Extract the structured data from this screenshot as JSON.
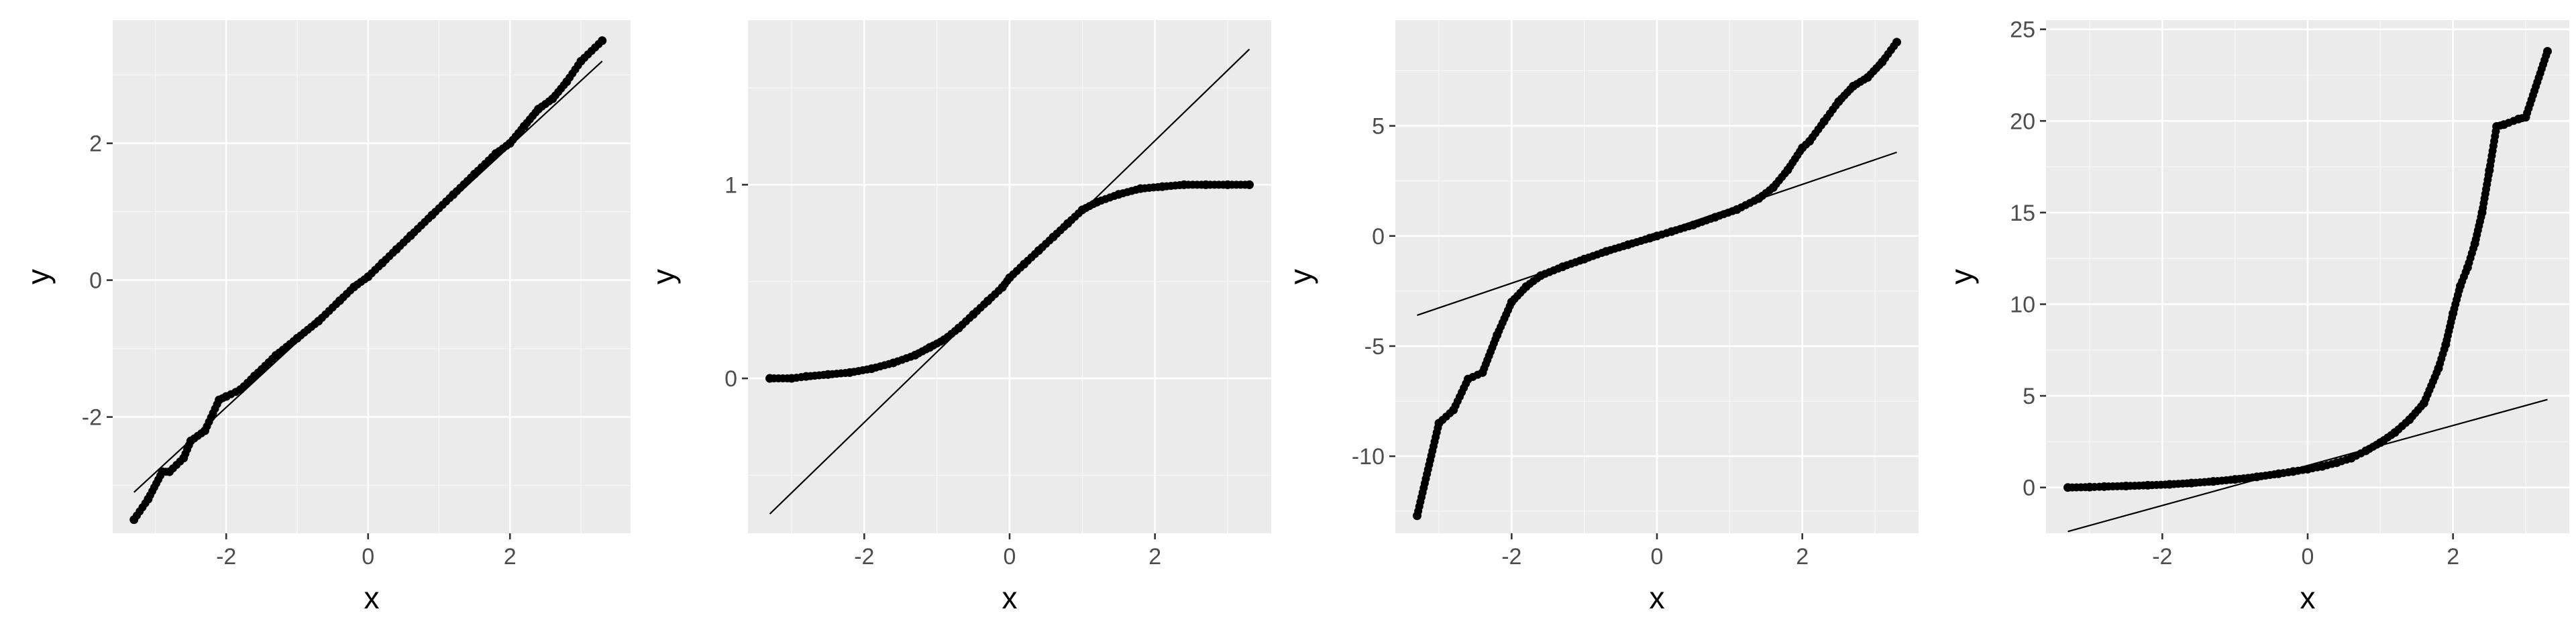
{
  "chart_data": [
    {
      "type": "scatter",
      "xlabel": "x",
      "ylabel": "y",
      "xlim": [
        -3.6,
        3.7
      ],
      "ylim": [
        -3.7,
        3.8
      ],
      "x_ticks": [
        "-2",
        "0",
        "2"
      ],
      "y_ticks": [
        "-2",
        "0",
        "2"
      ],
      "grid": true,
      "reference_line": {
        "x": [
          -3.3,
          3.3
        ],
        "y": [
          -3.1,
          3.2
        ]
      },
      "series": [
        {
          "x": [
            -3.3,
            -3.1,
            -2.9,
            -2.8,
            -2.6,
            -2.5,
            -2.3,
            -2.1,
            -2.0,
            -1.8,
            -1.6,
            -1.3,
            -1.0,
            -0.7,
            -0.4,
            -0.2,
            0.0,
            0.2,
            0.4,
            0.6,
            0.9,
            1.2,
            1.5,
            1.8,
            2.0,
            2.2,
            2.4,
            2.6,
            2.8,
            3.0,
            3.3
          ],
          "y": [
            -3.5,
            -3.2,
            -2.8,
            -2.8,
            -2.6,
            -2.35,
            -2.2,
            -1.75,
            -1.7,
            -1.6,
            -1.4,
            -1.1,
            -0.85,
            -0.6,
            -0.3,
            -0.1,
            0.05,
            0.25,
            0.45,
            0.65,
            0.95,
            1.25,
            1.55,
            1.85,
            2.0,
            2.25,
            2.5,
            2.65,
            2.9,
            3.2,
            3.5
          ]
        }
      ]
    },
    {
      "type": "scatter",
      "xlabel": "x",
      "ylabel": "y",
      "xlim": [
        -3.6,
        3.6
      ],
      "ylim": [
        -0.8,
        1.85
      ],
      "x_ticks": [
        "-2",
        "0",
        "2"
      ],
      "y_ticks": [
        "0",
        "1"
      ],
      "grid": true,
      "reference_line": {
        "x": [
          -3.3,
          3.3
        ],
        "y": [
          -0.7,
          1.7
        ]
      },
      "series": [
        {
          "x": [
            -3.3,
            -3.0,
            -2.8,
            -2.5,
            -2.2,
            -1.9,
            -1.6,
            -1.3,
            -1.1,
            -0.9,
            -0.7,
            -0.5,
            -0.3,
            -0.1,
            0.0,
            0.2,
            0.4,
            0.6,
            0.8,
            1.0,
            1.2,
            1.5,
            1.8,
            2.1,
            2.4,
            2.7,
            3.0,
            3.3
          ],
          "y": [
            0.0,
            0.0,
            0.01,
            0.02,
            0.03,
            0.05,
            0.08,
            0.12,
            0.16,
            0.2,
            0.26,
            0.33,
            0.4,
            0.47,
            0.52,
            0.59,
            0.66,
            0.73,
            0.8,
            0.87,
            0.91,
            0.95,
            0.98,
            0.99,
            1.0,
            1.0,
            1.0,
            1.0
          ]
        }
      ]
    },
    {
      "type": "scatter",
      "xlabel": "x",
      "ylabel": "y",
      "xlim": [
        -3.6,
        3.6
      ],
      "ylim": [
        -13.5,
        9.8
      ],
      "x_ticks": [
        "-2",
        "0",
        "2"
      ],
      "y_ticks": [
        "-10",
        "-5",
        "0",
        "5"
      ],
      "grid": true,
      "reference_line": {
        "x": [
          -3.3,
          3.3
        ],
        "y": [
          -3.6,
          3.8
        ]
      },
      "series": [
        {
          "x": [
            -3.3,
            -3.0,
            -2.8,
            -2.6,
            -2.4,
            -2.2,
            -2.0,
            -1.8,
            -1.6,
            -1.3,
            -1.0,
            -0.7,
            -0.4,
            -0.1,
            0.0,
            0.2,
            0.5,
            0.8,
            1.1,
            1.4,
            1.6,
            1.8,
            2.0,
            2.1,
            2.3,
            2.5,
            2.7,
            2.9,
            3.1,
            3.3
          ],
          "y": [
            -12.7,
            -8.5,
            -7.9,
            -6.5,
            -6.2,
            -4.5,
            -3.0,
            -2.3,
            -1.8,
            -1.4,
            -1.05,
            -0.7,
            -0.4,
            -0.1,
            0.0,
            0.2,
            0.5,
            0.85,
            1.2,
            1.7,
            2.2,
            3.0,
            4.0,
            4.3,
            5.2,
            6.1,
            6.8,
            7.2,
            7.9,
            8.8
          ]
        }
      ]
    },
    {
      "type": "scatter",
      "xlabel": "x",
      "ylabel": "y",
      "xlim": [
        -3.6,
        3.6
      ],
      "ylim": [
        -2.5,
        25.5
      ],
      "x_ticks": [
        "-2",
        "0",
        "2"
      ],
      "y_ticks": [
        "0",
        "5",
        "10",
        "15",
        "20",
        "25"
      ],
      "grid": true,
      "reference_line": {
        "x": [
          -3.3,
          3.3
        ],
        "y": [
          -2.4,
          4.8
        ]
      },
      "series": [
        {
          "x": [
            -3.3,
            -3.0,
            -2.8,
            -2.5,
            -2.2,
            -1.9,
            -1.6,
            -1.3,
            -1.0,
            -0.7,
            -0.4,
            -0.2,
            0.0,
            0.2,
            0.4,
            0.6,
            0.8,
            1.0,
            1.2,
            1.4,
            1.6,
            1.8,
            1.9,
            2.0,
            2.1,
            2.2,
            2.3,
            2.4,
            2.5,
            2.6,
            2.7,
            2.9,
            3.0,
            3.3
          ],
          "y": [
            0.0,
            0.02,
            0.05,
            0.08,
            0.12,
            0.17,
            0.24,
            0.33,
            0.44,
            0.58,
            0.75,
            0.87,
            1.0,
            1.15,
            1.35,
            1.6,
            2.0,
            2.45,
            3.0,
            3.7,
            4.6,
            6.5,
            7.8,
            9.5,
            11.0,
            12.0,
            13.3,
            15.0,
            17.3,
            19.7,
            19.8,
            20.1,
            20.2,
            23.8
          ]
        }
      ]
    }
  ]
}
